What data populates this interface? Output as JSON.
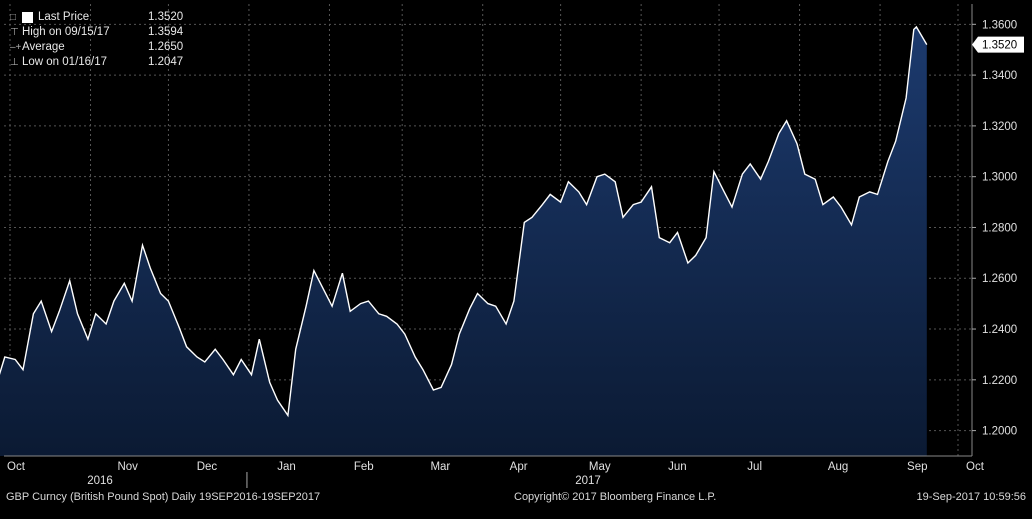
{
  "legend": {
    "items": [
      {
        "label": "Last Price",
        "value": "1.3520"
      },
      {
        "label": "High on 09/15/17",
        "value": "1.3594"
      },
      {
        "label": "Average",
        "value": "1.2650"
      },
      {
        "label": "Low on 01/16/17",
        "value": "1.2047"
      }
    ]
  },
  "footer": {
    "left": "GBP Curncy (British Pound Spot)  Daily 19SEP2016-19SEP2017",
    "center": "Copyright© 2017 Bloomberg Finance L.P.",
    "right": "19-Sep-2017 10:59:56"
  },
  "chart_data": {
    "type": "area",
    "title": "",
    "xlabel": "",
    "ylabel": "",
    "ylim": [
      1.19,
      1.368
    ],
    "y_ticks": [
      "1.2000",
      "1.2200",
      "1.2400",
      "1.2600",
      "1.2800",
      "1.3000",
      "1.3200",
      "1.3400",
      "1.3600"
    ],
    "x_tick_labels": [
      "Oct",
      "Nov",
      "Dec",
      "Jan",
      "Feb",
      "Mar",
      "Apr",
      "May",
      "Jun",
      "Jul",
      "Aug",
      "Sep",
      "Oct"
    ],
    "year_labels": [
      "2016",
      "2017"
    ],
    "last_price_label": "1.3520",
    "grid": true,
    "colors": {
      "line": "#ffffff",
      "fill_top": "#1c3a6e",
      "fill_bottom": "#0b1a33",
      "background": "#000000",
      "grid": "#555555",
      "last_price_tag": "#ffffff"
    },
    "series": [
      {
        "name": "Last Price",
        "x": [
          "2016-09-19",
          "2016-09-22",
          "2016-09-26",
          "2016-09-29",
          "2016-10-03",
          "2016-10-06",
          "2016-10-10",
          "2016-10-13",
          "2016-10-17",
          "2016-10-20",
          "2016-10-24",
          "2016-10-27",
          "2016-10-31",
          "2016-11-03",
          "2016-11-07",
          "2016-11-10",
          "2016-11-14",
          "2016-11-17",
          "2016-11-21",
          "2016-11-24",
          "2016-11-28",
          "2016-12-01",
          "2016-12-05",
          "2016-12-08",
          "2016-12-12",
          "2016-12-15",
          "2016-12-19",
          "2016-12-22",
          "2016-12-26",
          "2016-12-29",
          "2017-01-02",
          "2017-01-05",
          "2017-01-09",
          "2017-01-12",
          "2017-01-16",
          "2017-01-19",
          "2017-01-23",
          "2017-01-26",
          "2017-01-30",
          "2017-02-02",
          "2017-02-06",
          "2017-02-09",
          "2017-02-13",
          "2017-02-16",
          "2017-02-20",
          "2017-02-23",
          "2017-02-27",
          "2017-03-02",
          "2017-03-06",
          "2017-03-09",
          "2017-03-13",
          "2017-03-16",
          "2017-03-20",
          "2017-03-23",
          "2017-03-27",
          "2017-03-30",
          "2017-04-03",
          "2017-04-06",
          "2017-04-10",
          "2017-04-13",
          "2017-04-17",
          "2017-04-20",
          "2017-04-24",
          "2017-04-27",
          "2017-05-01",
          "2017-05-04",
          "2017-05-08",
          "2017-05-11",
          "2017-05-15",
          "2017-05-18",
          "2017-05-22",
          "2017-05-25",
          "2017-05-29",
          "2017-06-01",
          "2017-06-05",
          "2017-06-08",
          "2017-06-12",
          "2017-06-15",
          "2017-06-19",
          "2017-06-22",
          "2017-06-26",
          "2017-06-29",
          "2017-07-03",
          "2017-07-06",
          "2017-07-10",
          "2017-07-13",
          "2017-07-17",
          "2017-07-20",
          "2017-07-24",
          "2017-07-27",
          "2017-07-31",
          "2017-08-03",
          "2017-08-07",
          "2017-08-10",
          "2017-08-14",
          "2017-08-17",
          "2017-08-21",
          "2017-08-24",
          "2017-08-28",
          "2017-08-31",
          "2017-09-04",
          "2017-09-07",
          "2017-09-11",
          "2017-09-14",
          "2017-09-15",
          "2017-09-19"
        ],
        "values": [
          1.213,
          1.224,
          1.219,
          1.229,
          1.228,
          1.224,
          1.246,
          1.251,
          1.239,
          1.247,
          1.259,
          1.246,
          1.236,
          1.246,
          1.242,
          1.251,
          1.258,
          1.251,
          1.273,
          1.264,
          1.254,
          1.251,
          1.241,
          1.233,
          1.229,
          1.227,
          1.232,
          1.228,
          1.222,
          1.228,
          1.222,
          1.236,
          1.219,
          1.212,
          1.206,
          1.232,
          1.249,
          1.263,
          1.255,
          1.249,
          1.262,
          1.247,
          1.25,
          1.251,
          1.246,
          1.245,
          1.242,
          1.238,
          1.229,
          1.224,
          1.216,
          1.217,
          1.226,
          1.238,
          1.248,
          1.254,
          1.25,
          1.249,
          1.242,
          1.251,
          1.282,
          1.284,
          1.289,
          1.293,
          1.29,
          1.298,
          1.294,
          1.289,
          1.3,
          1.301,
          1.298,
          1.284,
          1.289,
          1.29,
          1.296,
          1.276,
          1.274,
          1.278,
          1.266,
          1.269,
          1.276,
          1.302,
          1.294,
          1.288,
          1.301,
          1.305,
          1.299,
          1.306,
          1.317,
          1.322,
          1.313,
          1.301,
          1.299,
          1.289,
          1.292,
          1.288,
          1.281,
          1.292,
          1.294,
          1.293,
          1.306,
          1.314,
          1.331,
          1.358,
          1.359,
          1.352
        ]
      }
    ]
  }
}
